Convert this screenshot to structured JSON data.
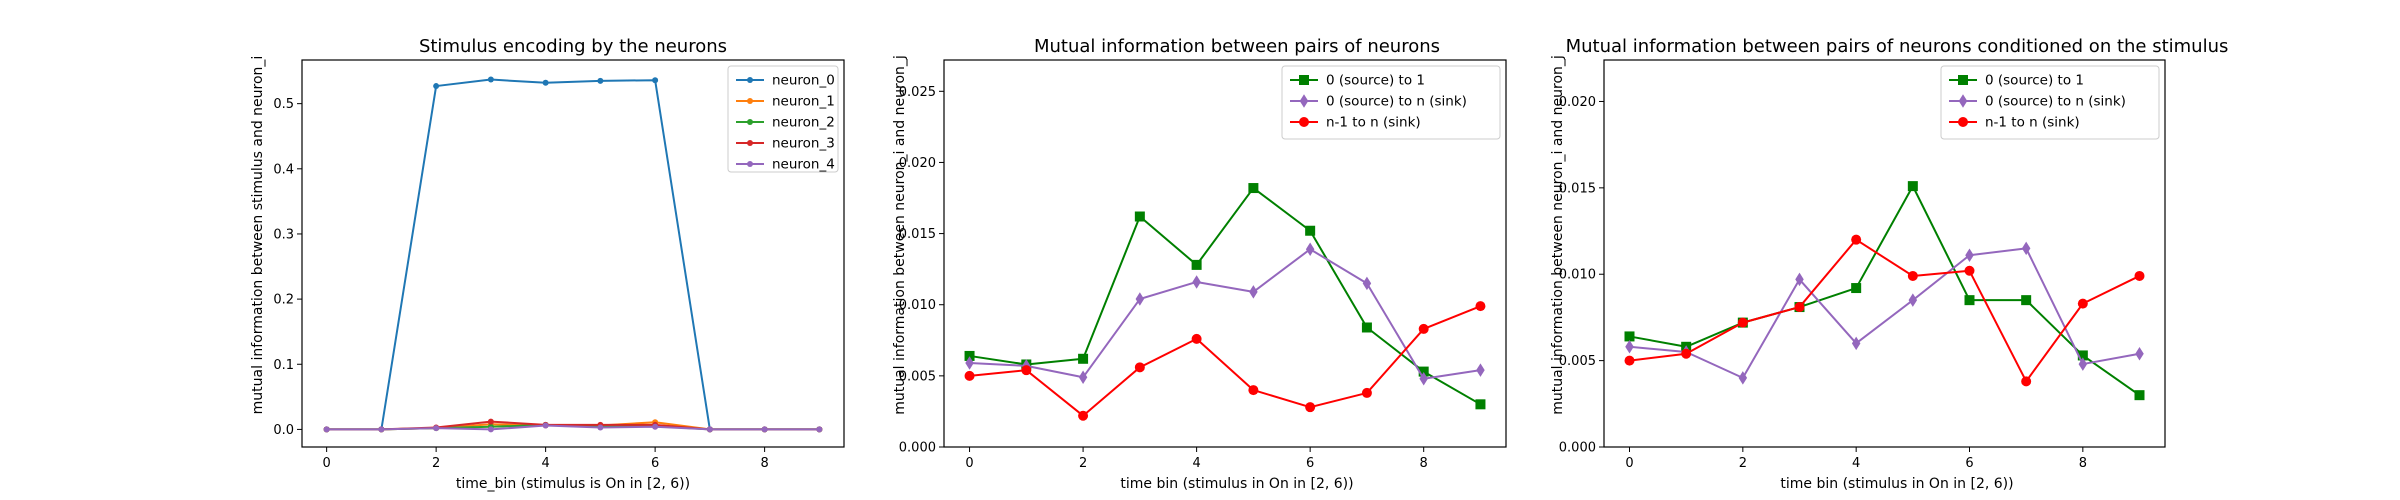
{
  "chart_data": [
    {
      "type": "line",
      "title": "Stimulus encoding by the neurons",
      "xlabel": "time_bin (stimulus is On in [2, 6))",
      "ylabel": "mutual information between stimulus and neuron_i",
      "xlim": [
        -0.45,
        9.45
      ],
      "ylim": [
        -0.027,
        0.567
      ],
      "xticks": [
        0,
        2,
        4,
        6,
        8
      ],
      "xtick_labels": [
        "0",
        "2",
        "4",
        "6",
        "8"
      ],
      "yticks": [
        0.0,
        0.1,
        0.2,
        0.3,
        0.4,
        0.5
      ],
      "ytick_labels": [
        "0.0",
        "0.1",
        "0.2",
        "0.3",
        "0.4",
        "0.5"
      ],
      "grid": false,
      "legend_position": "top-right",
      "x": [
        0,
        1,
        2,
        3,
        4,
        5,
        6,
        7,
        8,
        9
      ],
      "series": [
        {
          "name": "neuron_0",
          "color": "#1f77b4",
          "marker": "dot",
          "values": [
            0.0,
            0.0,
            0.527,
            0.537,
            0.532,
            0.535,
            0.536,
            0.0,
            0.0,
            0.0
          ]
        },
        {
          "name": "neuron_1",
          "color": "#ff7f0e",
          "marker": "dot",
          "values": [
            0.0,
            0.0,
            0.002,
            0.008,
            0.006,
            0.006,
            0.011,
            0.0,
            0.0,
            0.0
          ]
        },
        {
          "name": "neuron_2",
          "color": "#2ca02c",
          "marker": "dot",
          "values": [
            0.0,
            0.0,
            0.002,
            0.004,
            0.007,
            0.004,
            0.005,
            0.0,
            0.0,
            0.0
          ]
        },
        {
          "name": "neuron_3",
          "color": "#d62728",
          "marker": "dot",
          "values": [
            0.0,
            0.0,
            0.003,
            0.012,
            0.007,
            0.007,
            0.007,
            0.0,
            0.0,
            0.0
          ]
        },
        {
          "name": "neuron_4",
          "color": "#9467bd",
          "marker": "dot",
          "values": [
            0.0,
            0.0,
            0.002,
            0.0,
            0.006,
            0.003,
            0.004,
            0.0,
            0.0,
            0.0
          ]
        }
      ]
    },
    {
      "type": "line",
      "title": "Mutual information between pairs of neurons",
      "xlabel": "time bin (stimulus in On in [2, 6))",
      "ylabel": "mutual information between neuron_i and neuron_j",
      "xlim": [
        -0.45,
        9.45
      ],
      "ylim": [
        0.0,
        0.0272
      ],
      "xticks": [
        0,
        2,
        4,
        6,
        8
      ],
      "xtick_labels": [
        "0",
        "2",
        "4",
        "6",
        "8"
      ],
      "yticks": [
        0.0,
        0.005,
        0.01,
        0.015,
        0.02,
        0.025
      ],
      "ytick_labels": [
        "0.000",
        "0.005",
        "0.010",
        "0.015",
        "0.020",
        "0.025"
      ],
      "grid": false,
      "legend_position": "top-right",
      "x": [
        0,
        1,
        2,
        3,
        4,
        5,
        6,
        7,
        8,
        9
      ],
      "series": [
        {
          "name": "0 (source) to 1",
          "color": "#008000",
          "marker": "square",
          "values": [
            0.0064,
            0.0058,
            0.0062,
            0.0162,
            0.0128,
            0.0182,
            0.0152,
            0.0084,
            0.0053,
            0.003
          ]
        },
        {
          "name": "0 (source) to n (sink)",
          "color": "#9467bd",
          "marker": "diamond",
          "values": [
            0.0059,
            0.0057,
            0.0049,
            0.0104,
            0.0116,
            0.0109,
            0.0139,
            0.0115,
            0.0048,
            0.0054
          ]
        },
        {
          "name": "n-1 to n (sink)",
          "color": "#ff0000",
          "marker": "dot",
          "values": [
            0.005,
            0.0054,
            0.0022,
            0.0056,
            0.0076,
            0.004,
            0.0028,
            0.0038,
            0.0083,
            0.0099
          ]
        }
      ]
    },
    {
      "type": "line",
      "title": "Mutual information between pairs of neurons conditioned on the stimulus",
      "xlabel": "time bin (stimulus in On in [2, 6))",
      "ylabel": "mutual information between neuron_i and neuron_j",
      "xlim": [
        -0.45,
        9.45
      ],
      "ylim": [
        0.0,
        0.0224
      ],
      "xticks": [
        0,
        2,
        4,
        6,
        8
      ],
      "xtick_labels": [
        "0",
        "2",
        "4",
        "6",
        "8"
      ],
      "yticks": [
        0.0,
        0.005,
        0.01,
        0.015,
        0.02
      ],
      "ytick_labels": [
        "0.000",
        "0.005",
        "0.010",
        "0.015",
        "0.020"
      ],
      "grid": false,
      "legend_position": "top-right",
      "x": [
        0,
        1,
        2,
        3,
        4,
        5,
        6,
        7,
        8,
        9
      ],
      "series": [
        {
          "name": "0 (source) to 1",
          "color": "#008000",
          "marker": "square",
          "values": [
            0.0064,
            0.0058,
            0.0072,
            0.0081,
            0.0092,
            0.0151,
            0.0085,
            0.0085,
            0.0053,
            0.003
          ]
        },
        {
          "name": "0 (source) to n (sink)",
          "color": "#9467bd",
          "marker": "diamond",
          "values": [
            0.0058,
            0.0055,
            0.004,
            0.0097,
            0.006,
            0.0085,
            0.0111,
            0.0115,
            0.0048,
            0.0054
          ]
        },
        {
          "name": "n-1 to n (sink)",
          "color": "#ff0000",
          "marker": "dot",
          "values": [
            0.005,
            0.0054,
            0.0072,
            0.0081,
            0.012,
            0.0099,
            0.0102,
            0.0038,
            0.0083,
            0.0099
          ]
        }
      ]
    }
  ]
}
